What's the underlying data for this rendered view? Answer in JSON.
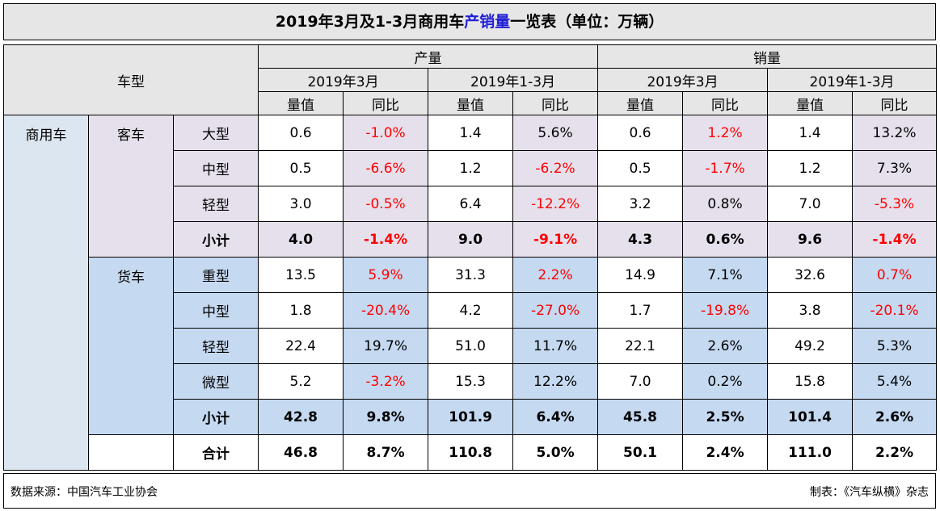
{
  "title": {
    "prefix": "2019年3月及1-3月商用车",
    "highlight": "产销量",
    "suffix": "一览表（单位：万辆）"
  },
  "header": {
    "vehicle_type": "车型",
    "production": "产量",
    "sales": "销量",
    "period_month": "2019年3月",
    "period_cumulative": "2019年1-3月",
    "value": "量值",
    "yoy": "同比"
  },
  "labels": {
    "commercial": "商用车",
    "bus": "客车",
    "truck": "货车",
    "subtotal": "小计",
    "total": "合计"
  },
  "rows": [
    {
      "type": "大型",
      "cells": [
        "0.6",
        "-1.0%",
        "1.4",
        "5.6%",
        "0.6",
        "1.2%",
        "1.4",
        "13.2%"
      ]
    },
    {
      "type": "中型",
      "cells": [
        "0.5",
        "-6.6%",
        "1.2",
        "-6.2%",
        "0.5",
        "-1.7%",
        "1.2",
        "7.3%"
      ]
    },
    {
      "type": "轻型",
      "cells": [
        "3.0",
        "-0.5%",
        "6.4",
        "-12.2%",
        "3.2",
        "0.8%",
        "7.0",
        "-5.3%"
      ]
    },
    {
      "type": "小计",
      "cells": [
        "4.0",
        "-1.4%",
        "9.0",
        "-9.1%",
        "4.3",
        "0.6%",
        "9.6",
        "-1.4%"
      ]
    },
    {
      "type": "重型",
      "cells": [
        "13.5",
        "5.9%",
        "31.3",
        "2.2%",
        "14.9",
        "7.1%",
        "32.6",
        "0.7%"
      ]
    },
    {
      "type": "中型",
      "cells": [
        "1.8",
        "-20.4%",
        "4.2",
        "-27.0%",
        "1.7",
        "-19.8%",
        "3.8",
        "-20.1%"
      ]
    },
    {
      "type": "轻型",
      "cells": [
        "22.4",
        "19.7%",
        "51.0",
        "11.7%",
        "22.1",
        "2.6%",
        "49.2",
        "5.3%"
      ]
    },
    {
      "type": "微型",
      "cells": [
        "5.2",
        "-3.2%",
        "15.3",
        "12.2%",
        "7.0",
        "0.2%",
        "15.8",
        "5.4%"
      ]
    },
    {
      "type": "小计",
      "cells": [
        "42.8",
        "9.8%",
        "101.9",
        "6.4%",
        "45.8",
        "2.5%",
        "101.4",
        "2.6%"
      ]
    },
    {
      "type": "合计",
      "cells": [
        "46.8",
        "8.7%",
        "110.8",
        "5.0%",
        "50.1",
        "2.4%",
        "111.0",
        "2.2%"
      ]
    }
  ],
  "footer": {
    "source": "数据来源：中国汽车工业协会",
    "credit": "制表：《汽车纵横》杂志"
  },
  "colors": {
    "header_gray": "#e7e6e6",
    "bus_lavender": "#e6e0ec",
    "truck_blue": "#c5d9f1",
    "commercial_blue": "#dce6f1",
    "negative_red": "#ff0000",
    "title_highlight": "#1f1fd6"
  }
}
